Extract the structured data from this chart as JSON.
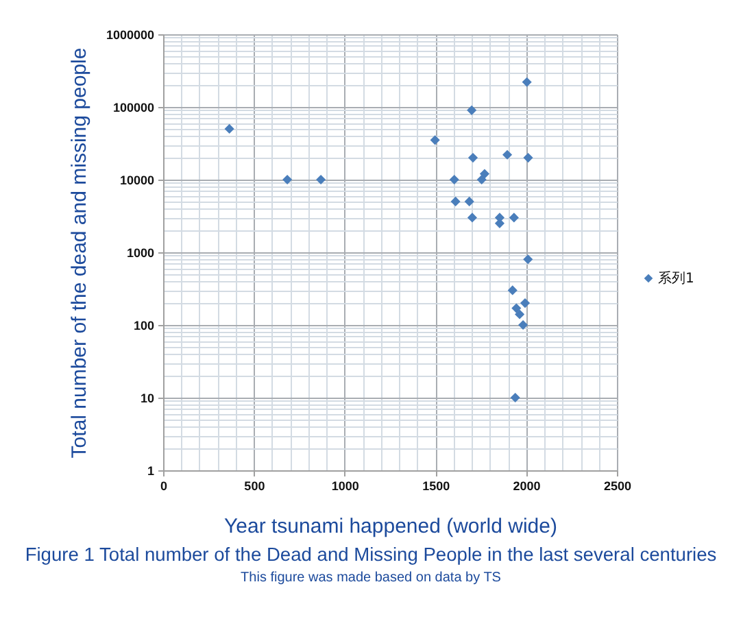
{
  "chart_data": {
    "type": "scatter",
    "title": "Figure 1 Total number of the Dead and Missing People in the last several centuries",
    "annotations": [
      "This figure was made based on data by TS"
    ],
    "xlabel": "Year tsunami happened (world wide)",
    "ylabel": "Total number of the dead and missing people",
    "series": [
      {
        "name": "系列1",
        "color": "#4a7ebb",
        "x": [
          365,
          684,
          869,
          1498,
          1604,
          1611,
          1687,
          1700,
          1703,
          1707,
          1755,
          1771,
          1854,
          1854,
          1896,
          1925,
          1933,
          1940,
          1946,
          1964,
          1983,
          1994,
          2004,
          2010,
          2011
        ],
        "values": [
          50000,
          10000,
          10000,
          35000,
          10000,
          5000,
          5000,
          90000,
          3000,
          20000,
          10000,
          12000,
          3000,
          2500,
          22000,
          300,
          3000,
          10,
          170,
          140,
          100,
          200,
          220000,
          800,
          20000
        ]
      }
    ],
    "xlim": [
      0,
      2500
    ],
    "ylim": [
      1,
      1000000
    ],
    "xticks": [
      0,
      {
        "value": 100,
        "label": null
      },
      {
        "value": 200,
        "label": null
      },
      {
        "value": 300,
        "label": null
      },
      {
        "value": 400,
        "label": null
      },
      500,
      {
        "value": 600,
        "label": null
      },
      {
        "value": 700,
        "label": null
      },
      {
        "value": 800,
        "label": null
      },
      {
        "value": 900,
        "label": null
      },
      1000,
      {
        "value": 1100,
        "label": null
      },
      {
        "value": 1200,
        "label": null
      },
      {
        "value": 1300,
        "label": null
      },
      {
        "value": 1400,
        "label": null
      },
      1500,
      {
        "value": 1600,
        "label": null
      },
      {
        "value": 1700,
        "label": null
      },
      {
        "value": 1800,
        "label": null
      },
      {
        "value": 1900,
        "label": null
      },
      2000,
      {
        "value": 2100,
        "label": null
      },
      {
        "value": 2200,
        "label": null
      },
      {
        "value": 2300,
        "label": null
      },
      {
        "value": 2400,
        "label": null
      },
      2500
    ],
    "yticks": [
      1,
      {
        "value": 2,
        "label": null
      },
      {
        "value": 3,
        "label": null
      },
      {
        "value": 4,
        "label": null
      },
      {
        "value": 5,
        "label": null
      },
      {
        "value": 6,
        "label": null
      },
      {
        "value": 7,
        "label": null
      },
      {
        "value": 8,
        "label": null
      },
      {
        "value": 9,
        "label": null
      },
      10,
      {
        "value": 20,
        "label": null
      },
      {
        "value": 30,
        "label": null
      },
      {
        "value": 40,
        "label": null
      },
      {
        "value": 50,
        "label": null
      },
      {
        "value": 60,
        "label": null
      },
      {
        "value": 70,
        "label": null
      },
      {
        "value": 80,
        "label": null
      },
      {
        "value": 90,
        "label": null
      },
      100,
      {
        "value": 200,
        "label": null
      },
      {
        "value": 300,
        "label": null
      },
      {
        "value": 400,
        "label": null
      },
      {
        "value": 500,
        "label": null
      },
      {
        "value": 600,
        "label": null
      },
      {
        "value": 700,
        "label": null
      },
      {
        "value": 800,
        "label": null
      },
      {
        "value": 900,
        "label": null
      },
      1000,
      {
        "value": 2000,
        "label": null
      },
      {
        "value": 3000,
        "label": null
      },
      {
        "value": 4000,
        "label": null
      },
      {
        "value": 5000,
        "label": null
      },
      {
        "value": 6000,
        "label": null
      },
      {
        "value": 7000,
        "label": null
      },
      {
        "value": 8000,
        "label": null
      },
      {
        "value": 9000,
        "label": null
      },
      10000,
      {
        "value": 20000,
        "label": null
      },
      {
        "value": 30000,
        "label": null
      },
      {
        "value": 40000,
        "label": null
      },
      {
        "value": 50000,
        "label": null
      },
      {
        "value": 60000,
        "label": null
      },
      {
        "value": 70000,
        "label": null
      },
      {
        "value": 80000,
        "label": null
      },
      {
        "value": 90000,
        "label": null
      },
      100000,
      {
        "value": 200000,
        "label": null
      },
      {
        "value": 300000,
        "label": null
      },
      {
        "value": 400000,
        "label": null
      },
      {
        "value": 500000,
        "label": null
      },
      {
        "value": 600000,
        "label": null
      },
      {
        "value": 700000,
        "label": null
      },
      {
        "value": 800000,
        "label": null
      },
      {
        "value": 900000,
        "label": null
      },
      1000000
    ],
    "log": "y",
    "grid": true,
    "legend": "right",
    "marker": "diamond"
  }
}
